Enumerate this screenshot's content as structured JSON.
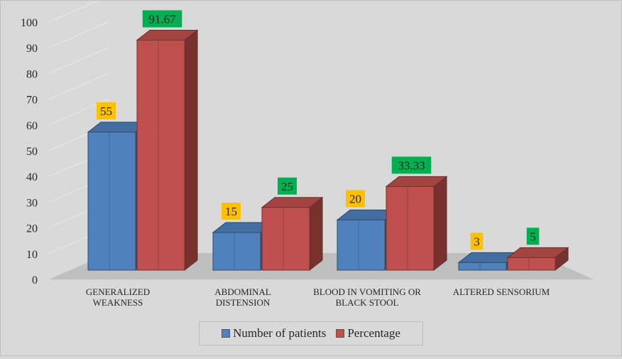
{
  "chart_data": {
    "type": "bar",
    "categories": [
      [
        "GENERALIZED",
        "WEAKNESS"
      ],
      [
        "ABDOMINAL",
        "DISTENSION"
      ],
      [
        "BLOOD IN VOMITING OR",
        "BLACK STOOL"
      ],
      [
        "ALTERED SENSORIUM"
      ]
    ],
    "series": [
      {
        "name": "Number of patients",
        "values": [
          55,
          15,
          20,
          3
        ],
        "labels": [
          "55",
          "15",
          "20",
          "3"
        ],
        "color": "#4f81bd",
        "label_bg": "#ffc000"
      },
      {
        "name": "Percentage",
        "values": [
          91.67,
          25,
          33.33,
          5
        ],
        "labels": [
          "91.67",
          "25",
          "33.33",
          "5"
        ],
        "color": "#c0504d",
        "label_bg": "#00b050"
      }
    ],
    "y_ticks": [
      "0",
      "10",
      "20",
      "30",
      "40",
      "50",
      "60",
      "70",
      "80",
      "90",
      "100"
    ],
    "ylim": [
      0,
      100
    ],
    "grid": true,
    "legend_position": "bottom",
    "background": "#d9d9d9",
    "floor_color": "#bfbfbf"
  }
}
